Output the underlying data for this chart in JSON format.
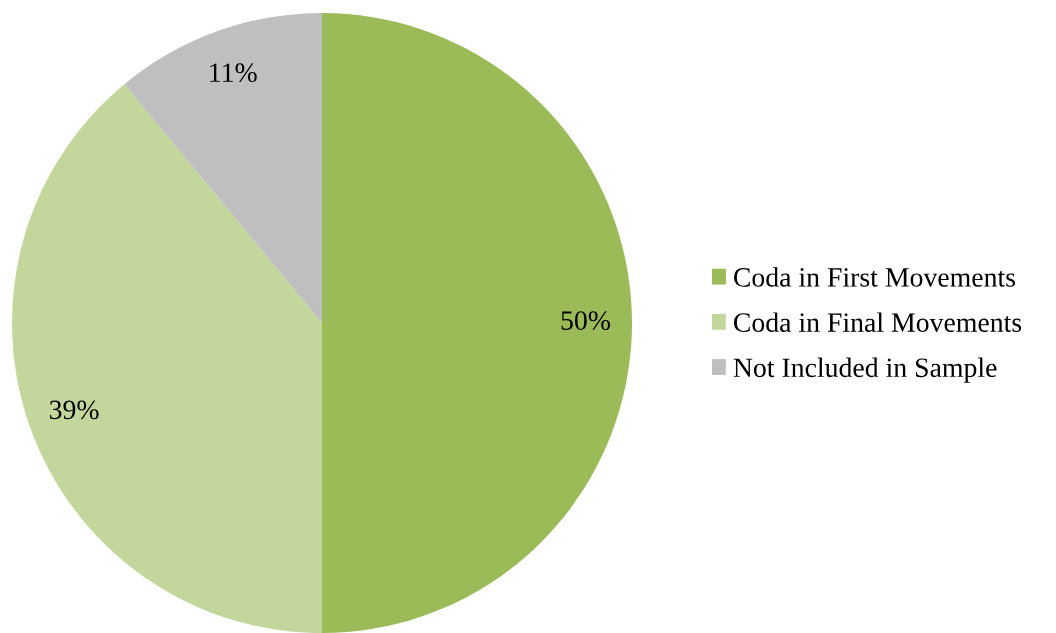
{
  "chart_data": {
    "type": "pie",
    "categories": [
      "Coda in First Movements",
      "Coda in Final Movements",
      "Not Included in Sample"
    ],
    "values": [
      50,
      39,
      11
    ],
    "colors": [
      "#9bbb59",
      "#c3d69b",
      "#bfbfbf"
    ],
    "value_labels": [
      "50%",
      "39%",
      "11%"
    ],
    "legend": "right"
  }
}
